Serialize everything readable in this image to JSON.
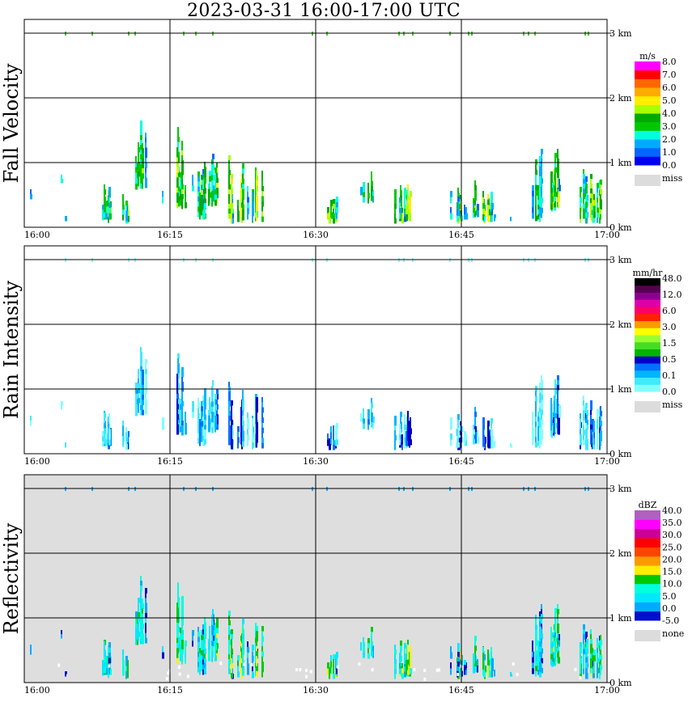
{
  "title": "2023-03-31   16:00-17:00 UTC",
  "time_ticks": [
    "16:00",
    "16:15",
    "16:30",
    "16:45",
    "17:00"
  ],
  "height_ticks": [
    "0 km",
    "1 km",
    "2 km",
    "3 km"
  ],
  "panels": [
    {
      "id": "fall-velocity",
      "ylabel": "Fall Velocity",
      "background": "#ffffff",
      "colorbar": {
        "unit": "m/s",
        "colors": [
          "#0000ee",
          "#0066ff",
          "#00aaff",
          "#00ffdd",
          "#00c800",
          "#00aa00",
          "#aaff00",
          "#ffee00",
          "#ffaa00",
          "#ff6600",
          "#ff0000",
          "#ff00ff"
        ],
        "labels": [
          "0.0",
          "1.0",
          "2.0",
          "3.0",
          "4.0",
          "5.0",
          "6.0",
          "7.0",
          "8.0"
        ],
        "missing_label": "miss"
      }
    },
    {
      "id": "rain-intensity",
      "ylabel": "Rain Intensity",
      "background": "#ffffff",
      "colorbar": {
        "unit": "mm/hr",
        "colors": [
          "#80ffff",
          "#40eaff",
          "#00b4ff",
          "#0070ff",
          "#0000c8",
          "#00b400",
          "#44dd22",
          "#99ff33",
          "#ffff00",
          "#ff9900",
          "#ff2200",
          "#ff0066",
          "#dd00aa",
          "#8b0090",
          "#550050",
          "#000000"
        ],
        "labels": [
          "0.0",
          "0.1",
          "0.5",
          "1.5",
          "3.0",
          "6.0",
          "12.0",
          "48.0"
        ],
        "missing_label": "miss"
      }
    },
    {
      "id": "reflectivity",
      "ylabel": "Reflectivity",
      "background": "#dedede",
      "colorbar": {
        "unit": "dBZ",
        "colors": [
          "#0010c8",
          "#00aaff",
          "#00e8ff",
          "#00ffdd",
          "#00c800",
          "#ffee00",
          "#ff9900",
          "#ff4400",
          "#ff0000",
          "#cc0099",
          "#ff00ff",
          "#b060c0"
        ],
        "labels": [
          "-5.0",
          "0.0",
          "5.0",
          "10.0",
          "15.0",
          "20.0",
          "25.0",
          "30.0",
          "35.0",
          "40.0"
        ],
        "missing_label": "none"
      }
    }
  ]
}
